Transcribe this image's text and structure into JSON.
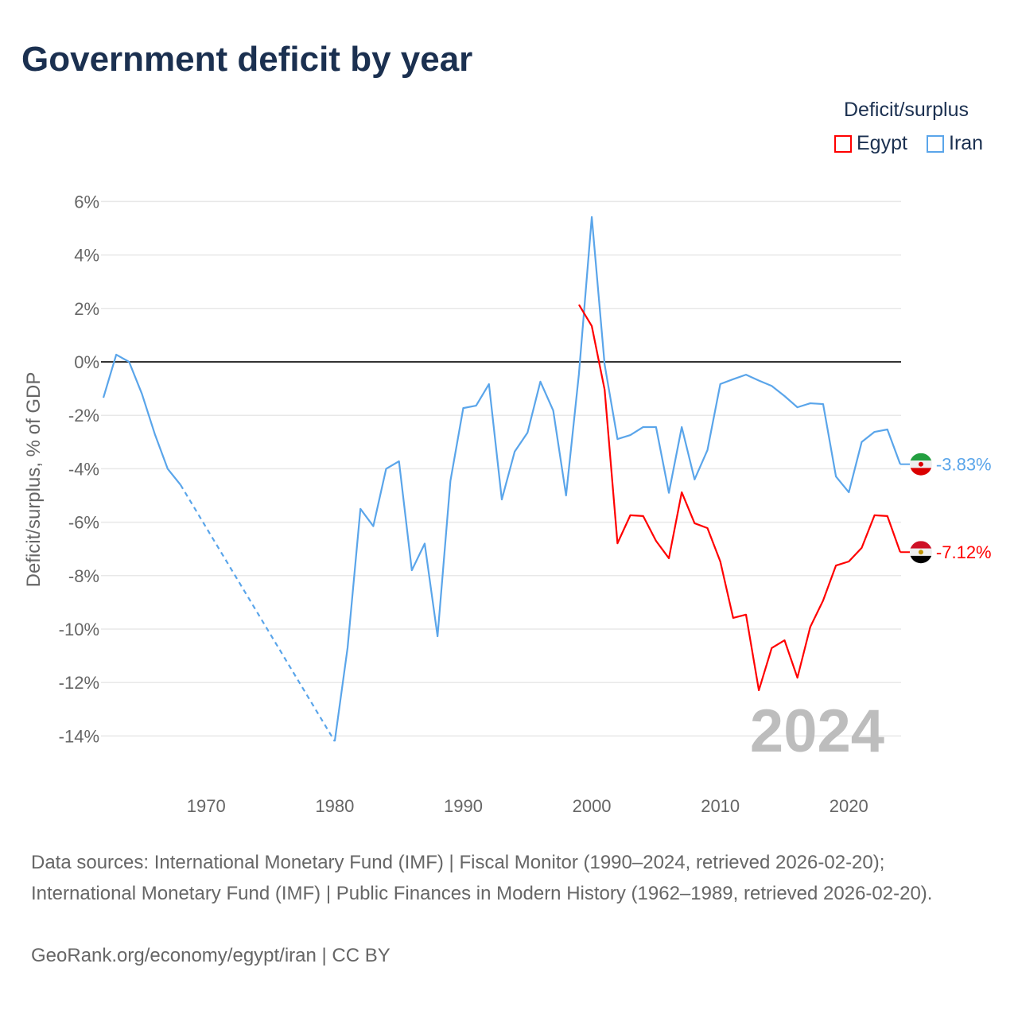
{
  "title": "Government deficit by year",
  "legend": {
    "title": "Deficit/surplus",
    "items": [
      {
        "name": "Egypt",
        "color": "#ff0000"
      },
      {
        "name": "Iran",
        "color": "#5aa5ea"
      }
    ]
  },
  "year_label": "2024",
  "chart_data": {
    "type": "line",
    "title": "Government deficit by year",
    "xlabel": "",
    "ylabel": "Deficit/surplus, % of GDP",
    "xlim": [
      1962,
      2024
    ],
    "ylim": [
      -14,
      6
    ],
    "x_ticks": [
      1970,
      1980,
      1990,
      2000,
      2010,
      2020
    ],
    "y_ticks": [
      6,
      4,
      2,
      0,
      -2,
      -4,
      -6,
      -8,
      -10,
      -12,
      -14
    ],
    "y_tick_labels": [
      "6%",
      "4%",
      "2%",
      "0%",
      "-2%",
      "-4%",
      "-6%",
      "-8%",
      "-10%",
      "-12%",
      "-14%"
    ],
    "grid": true,
    "legend_position": "top-right",
    "series": [
      {
        "name": "Iran",
        "color": "#5aa5ea",
        "end_label": "-3.83%",
        "start_year": 1962,
        "values": [
          -1.34,
          0.27,
          0.0,
          -1.2,
          -2.7,
          -4.0,
          -4.6,
          null,
          null,
          null,
          null,
          null,
          null,
          null,
          null,
          null,
          null,
          null,
          -14.2,
          -10.7,
          -5.5,
          -6.15,
          -4.0,
          -3.72,
          -7.8,
          -6.8,
          -10.27,
          -4.46,
          -1.73,
          -1.64,
          -0.83,
          -5.15,
          -3.36,
          -2.65,
          -0.74,
          -1.82,
          -5.0,
          -0.45,
          5.42,
          -0.1,
          -2.89,
          -2.74,
          -2.44,
          -2.44,
          -4.9,
          -2.44,
          -4.4,
          -3.3,
          -0.83,
          -0.65,
          -0.48,
          -0.7,
          -0.9,
          -1.28,
          -1.7,
          -1.55,
          -1.58,
          -4.29,
          -4.88,
          -3.0,
          -2.62,
          -2.53,
          -3.83
        ]
      },
      {
        "name": "Egypt",
        "color": "#ff0000",
        "end_label": "-7.12%",
        "start_year": 1999,
        "values": [
          2.14,
          1.34,
          -1.04,
          -6.79,
          -5.74,
          -5.77,
          -6.7,
          -7.35,
          -4.88,
          -6.04,
          -6.22,
          -7.47,
          -9.58,
          -9.46,
          -12.29,
          -10.71,
          -10.42,
          -11.82,
          -9.92,
          -8.93,
          -7.62,
          -7.47,
          -6.96,
          -5.74,
          -5.77,
          -7.12
        ]
      }
    ]
  },
  "sources": {
    "line1": "Data sources: International Monetary Fund (IMF) | Fiscal Monitor (1990–2024, retrieved 2026-02-20);",
    "line2": "International Monetary Fund (IMF) | Public Finances in Modern History (1962–1989, retrieved 2026-02-20).",
    "credit": "GeoRank.org/economy/egypt/iran | CC BY"
  }
}
